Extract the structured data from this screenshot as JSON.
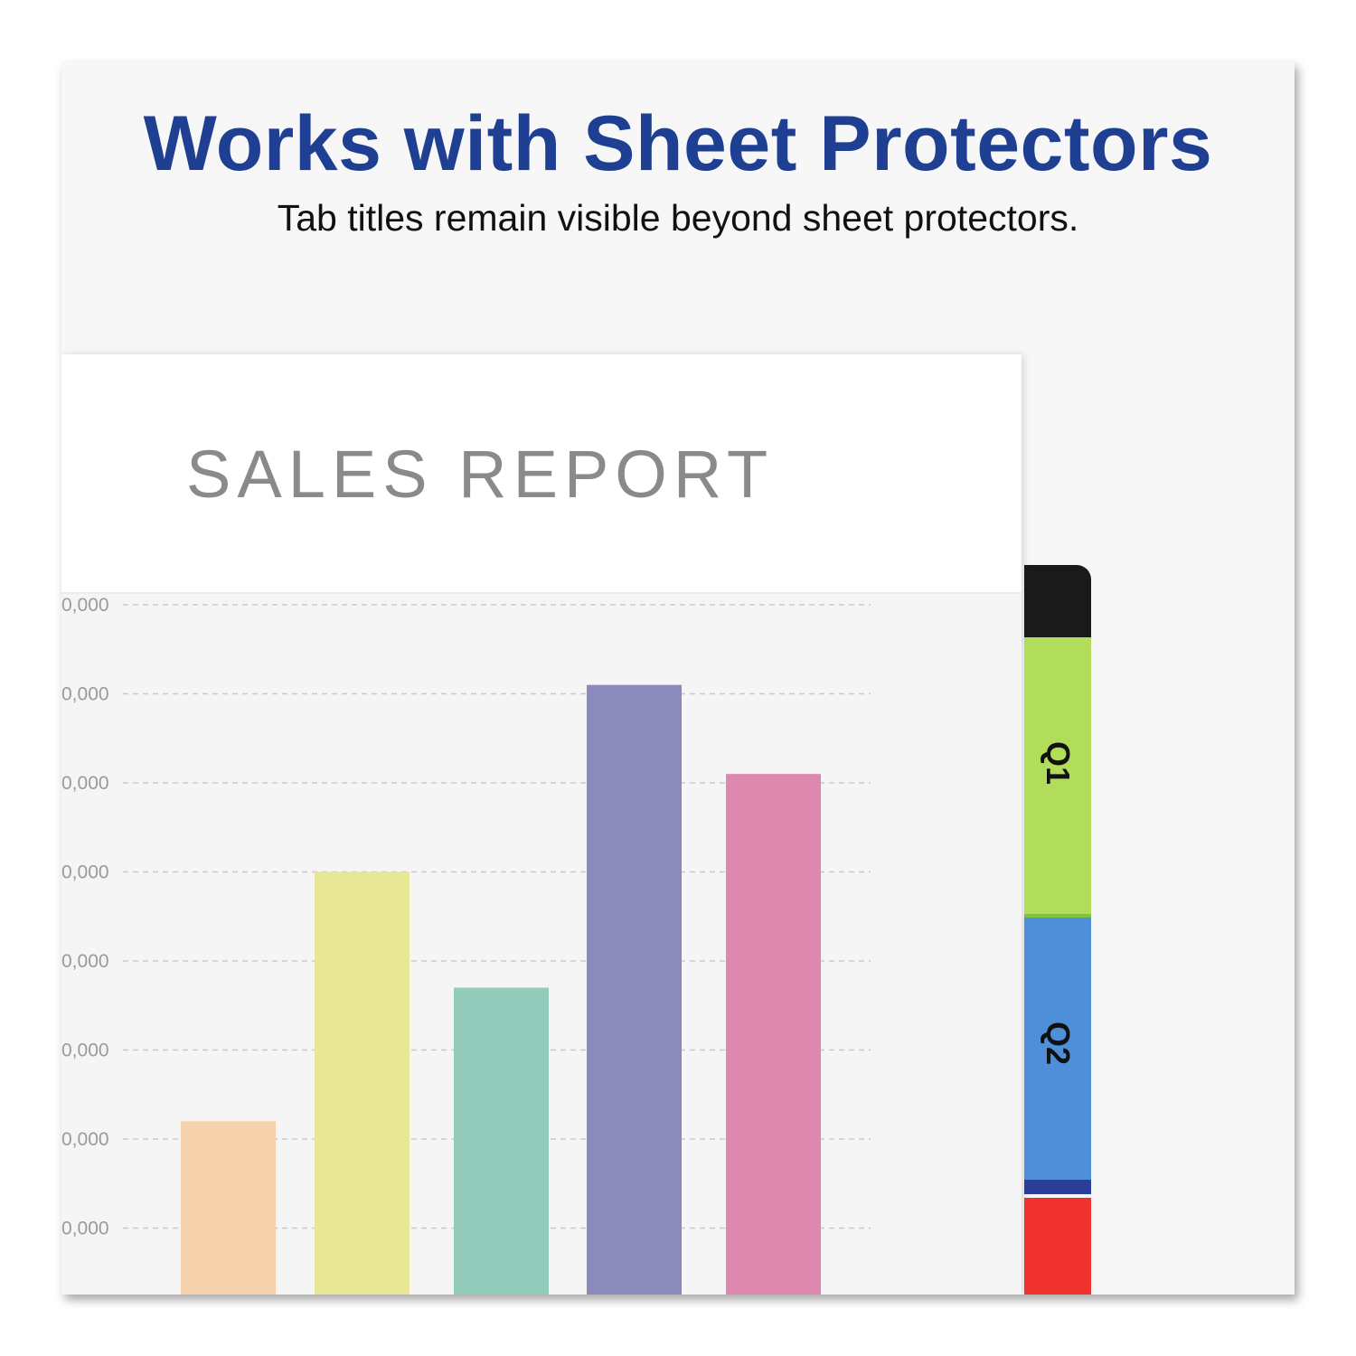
{
  "headline": "Works with Sheet Protectors",
  "subheadline": "Tab titles remain visible beyond sheet protectors.",
  "report": {
    "title": "SALES REPORT"
  },
  "chart_data": {
    "type": "bar",
    "title": "",
    "y_tick_labels": [
      "0,000",
      "0,000",
      "0,000",
      "0,000",
      "0,000",
      "0,000",
      "0,000",
      "0,000"
    ],
    "values": [
      2.2,
      5.0,
      3.7,
      7.1,
      6.1
    ],
    "ylim": [
      0,
      8
    ],
    "grid": true,
    "grid_style": "dashed",
    "bar_colors": [
      "#f5d2ac",
      "#e8e796",
      "#93ccbb",
      "#8c8abb",
      "#de88ad"
    ]
  },
  "tabs": [
    {
      "label": "",
      "color": "#1a1a1a"
    },
    {
      "label": "Q1",
      "color": "#b2dd5a"
    },
    {
      "label": "Q2",
      "color": "#4f8ed8"
    },
    {
      "label": "",
      "color": "#f0322e"
    }
  ]
}
